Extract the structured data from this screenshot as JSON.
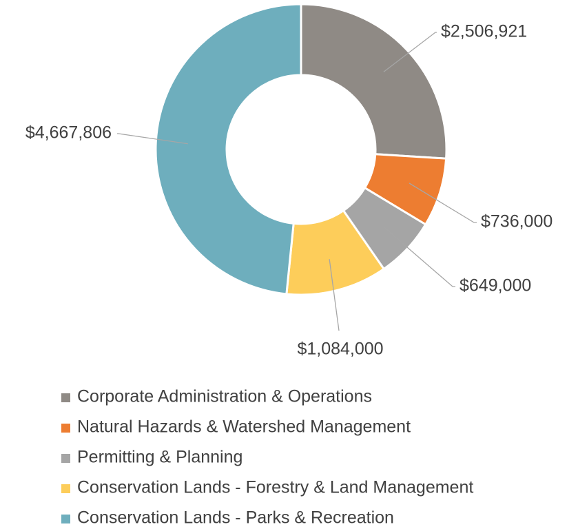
{
  "chart_data": {
    "type": "donut",
    "categories": [
      "Corporate Administration & Operations",
      "Natural Hazards & Watershed Management",
      "Permitting & Planning",
      "Conservation Lands - Forestry & Land Management",
      "Conservation Lands - Parks & Recreation"
    ],
    "values": [
      2506921,
      736000,
      649000,
      1084000,
      4667806
    ],
    "value_labels": [
      "$2,506,921",
      "$736,000",
      "$649,000",
      "$1,084,000",
      "$4,667,806"
    ],
    "colors": [
      "#8f8a85",
      "#ed7d31",
      "#a5a5a5",
      "#fdcd5a",
      "#6eaebd"
    ],
    "legend": "bottom"
  }
}
